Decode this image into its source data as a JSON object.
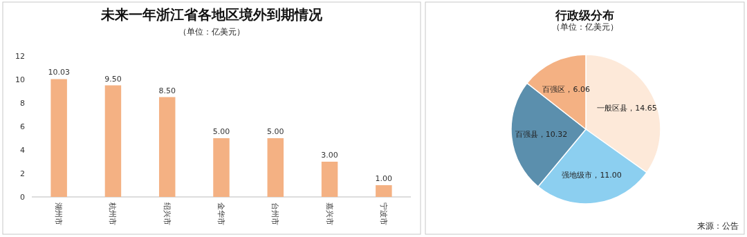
{
  "chart_data": [
    {
      "type": "bar",
      "title": "未来一年浙江省各地区境外到期情况",
      "subtitle": "（单位：亿美元）",
      "categories": [
        "湖州市",
        "杭州市",
        "绍兴市",
        "金华市",
        "台州市",
        "嘉兴市",
        "宁波市"
      ],
      "values": [
        10.03,
        9.5,
        8.5,
        5.0,
        5.0,
        3.0,
        1.0
      ],
      "value_labels": [
        "10.03",
        "9.50",
        "8.50",
        "5.00",
        "5.00",
        "3.00",
        "1.00"
      ],
      "color": "#f4b183",
      "ylim": [
        0,
        12
      ],
      "yticks": [
        0,
        2,
        4,
        6,
        8,
        10,
        12
      ],
      "grid": false
    },
    {
      "type": "pie",
      "title": "行政级分布",
      "subtitle": "（单位：亿美元）",
      "categories": [
        "一般区县",
        "强地级市",
        "百强县",
        "百强区"
      ],
      "values": [
        14.65,
        11.0,
        10.32,
        6.06
      ],
      "value_labels": [
        "14.65",
        "11.00",
        "10.32",
        "6.06"
      ],
      "colors": [
        "#fde9d9",
        "#8ccff0",
        "#5b8fad",
        "#f4b183"
      ],
      "annotations": [
        "来源：公告"
      ]
    }
  ]
}
